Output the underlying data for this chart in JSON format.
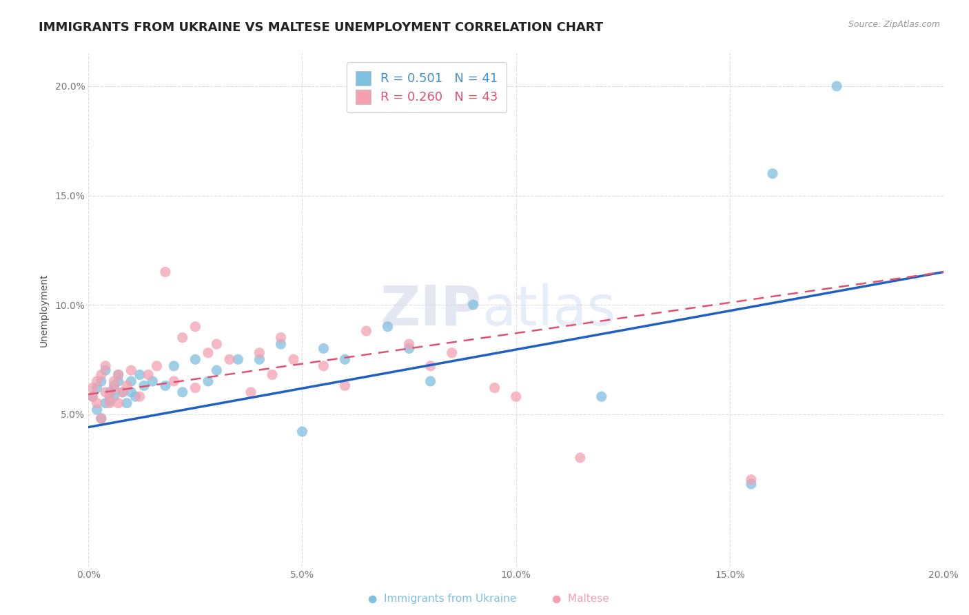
{
  "title": "IMMIGRANTS FROM UKRAINE VS MALTESE UNEMPLOYMENT CORRELATION CHART",
  "source": "Source: ZipAtlas.com",
  "ylabel": "Unemployment",
  "xmin": 0.0,
  "xmax": 0.2,
  "ymin": -0.02,
  "ymax": 0.215,
  "yticks": [
    0.05,
    0.1,
    0.15,
    0.2
  ],
  "xticks": [
    0.0,
    0.05,
    0.1,
    0.15,
    0.2
  ],
  "ukraine_color": "#7fbfdf",
  "maltese_color": "#f4a0b0",
  "ukraine_line_color": "#2060c0",
  "maltese_line_color": "#e05070",
  "background_color": "#ffffff",
  "grid_color": "#dddddd",
  "title_fontsize": 13,
  "legend_r1": "R = 0.501   N = 41",
  "legend_r2": "R = 0.260   N = 43",
  "legend_text_color1": "#4090d0",
  "legend_text_color2": "#e05070",
  "watermark": "ZIPatlas",
  "ukraine_line_x0": 0.0,
  "ukraine_line_y0": 0.044,
  "ukraine_line_x1": 0.2,
  "ukraine_line_y1": 0.115,
  "maltese_line_x0": 0.0,
  "maltese_line_y0": 0.059,
  "maltese_line_x1": 0.2,
  "maltese_line_y1": 0.115,
  "ukraine_pts_x": [
    0.001,
    0.002,
    0.002,
    0.003,
    0.003,
    0.004,
    0.004,
    0.005,
    0.005,
    0.006,
    0.006,
    0.007,
    0.007,
    0.008,
    0.009,
    0.01,
    0.01,
    0.011,
    0.012,
    0.013,
    0.015,
    0.018,
    0.02,
    0.022,
    0.025,
    0.028,
    0.03,
    0.035,
    0.04,
    0.045,
    0.05,
    0.055,
    0.06,
    0.07,
    0.075,
    0.08,
    0.09,
    0.12,
    0.155,
    0.16,
    0.175
  ],
  "ukraine_pts_y": [
    0.058,
    0.052,
    0.062,
    0.048,
    0.065,
    0.055,
    0.07,
    0.06,
    0.056,
    0.063,
    0.058,
    0.068,
    0.065,
    0.06,
    0.055,
    0.065,
    0.06,
    0.058,
    0.068,
    0.063,
    0.065,
    0.063,
    0.072,
    0.06,
    0.075,
    0.065,
    0.07,
    0.075,
    0.075,
    0.082,
    0.042,
    0.08,
    0.075,
    0.09,
    0.08,
    0.065,
    0.1,
    0.058,
    0.018,
    0.16,
    0.2
  ],
  "maltese_pts_x": [
    0.001,
    0.001,
    0.002,
    0.002,
    0.003,
    0.003,
    0.004,
    0.004,
    0.005,
    0.005,
    0.006,
    0.006,
    0.007,
    0.007,
    0.008,
    0.009,
    0.01,
    0.012,
    0.014,
    0.016,
    0.018,
    0.02,
    0.022,
    0.025,
    0.025,
    0.028,
    0.03,
    0.033,
    0.038,
    0.04,
    0.043,
    0.045,
    0.048,
    0.055,
    0.06,
    0.065,
    0.075,
    0.08,
    0.085,
    0.095,
    0.1,
    0.115,
    0.155
  ],
  "maltese_pts_y": [
    0.058,
    0.062,
    0.055,
    0.065,
    0.048,
    0.068,
    0.06,
    0.072,
    0.055,
    0.058,
    0.065,
    0.062,
    0.055,
    0.068,
    0.06,
    0.063,
    0.07,
    0.058,
    0.068,
    0.072,
    0.115,
    0.065,
    0.085,
    0.062,
    0.09,
    0.078,
    0.082,
    0.075,
    0.06,
    0.078,
    0.068,
    0.085,
    0.075,
    0.072,
    0.063,
    0.088,
    0.082,
    0.072,
    0.078,
    0.062,
    0.058,
    0.03,
    0.02
  ]
}
